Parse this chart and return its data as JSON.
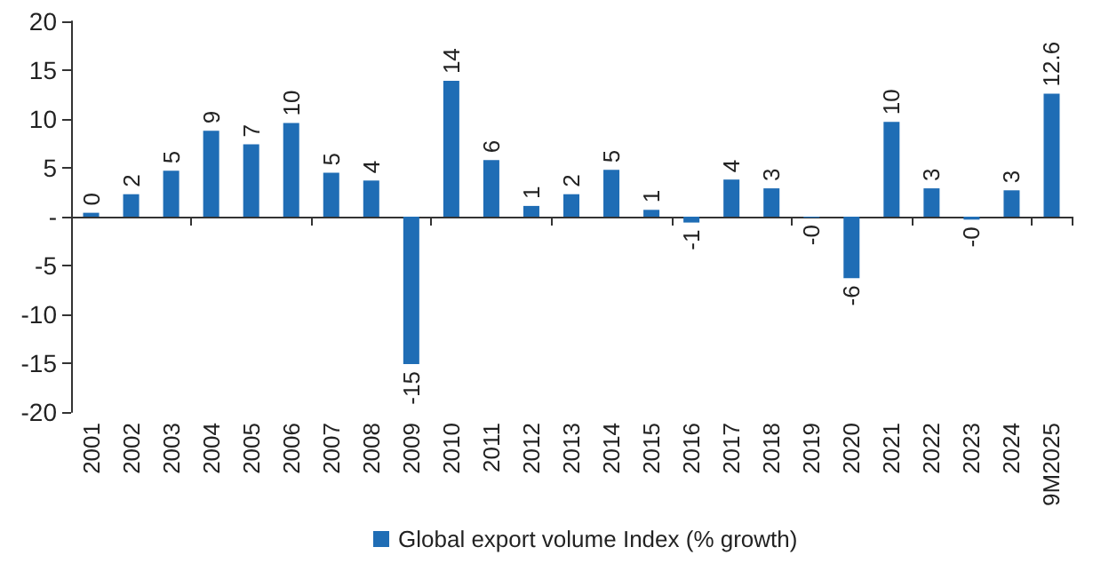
{
  "chart_data": {
    "type": "bar",
    "categories": [
      "2001",
      "2002",
      "2003",
      "2004",
      "2005",
      "2006",
      "2007",
      "2008",
      "2009",
      "2010",
      "2011",
      "2012",
      "2013",
      "2014",
      "2015",
      "2016",
      "2017",
      "2018",
      "2019",
      "2020",
      "2021",
      "2022",
      "2023",
      "2024",
      "9M2025"
    ],
    "series": [
      {
        "name": "Global export volume Index (% growth)",
        "color": "#1f6db5",
        "values": [
          0.4,
          2.3,
          4.7,
          8.8,
          7.4,
          9.6,
          4.5,
          3.7,
          -15.1,
          13.9,
          5.8,
          1.1,
          2.3,
          4.8,
          0.7,
          -0.6,
          3.8,
          2.9,
          -0.1,
          -6.3,
          9.7,
          2.9,
          -0.3,
          2.7,
          12.6
        ],
        "value_labels": [
          "0",
          "2",
          "5",
          "9",
          "7",
          "10",
          "5",
          "4",
          "-15",
          "14",
          "6",
          "1",
          "2",
          "5",
          "1",
          "-1",
          "4",
          "3",
          "-0",
          "-6",
          "10",
          "3",
          "-0",
          "3",
          "12.6"
        ]
      }
    ],
    "ylim": [
      -20,
      20
    ],
    "yticks": [
      -20,
      -15,
      -10,
      -5,
      {
        "value": 0,
        "label": "-"
      },
      5,
      10,
      15,
      20
    ],
    "legend": "bottom"
  }
}
